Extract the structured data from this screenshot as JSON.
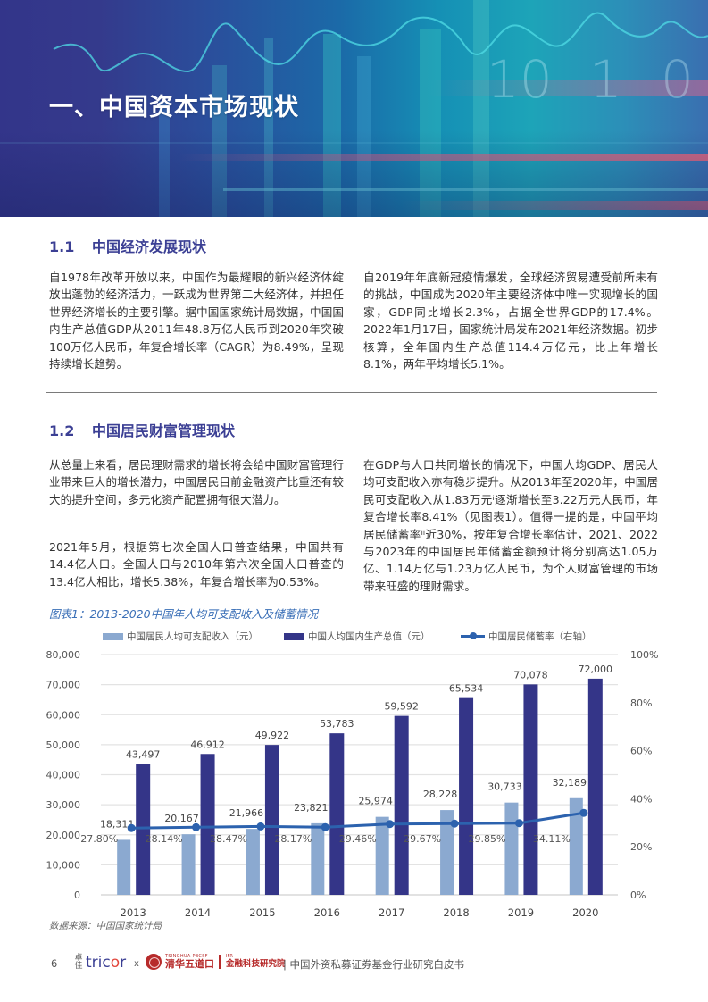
{
  "banner": {
    "title": "一、中国资本市场现状",
    "background_colors": [
      "#33358a",
      "#1b6aa8",
      "#1da4b8"
    ]
  },
  "section_1_1": {
    "number": "1.1",
    "title": "中国经济发展现状",
    "left_paragraph": "自1978年改革开放以来，中国作为最耀眼的新兴经济体绽放出蓬勃的经济活力，一跃成为世界第二大经济体，并担任世界经济增长的主要引擎。据中国国家统计局数据，中国国内生产总值GDP从2011年48.8万亿人民币到2020年突破100万亿人民币，年复合增长率（CAGR）为8.49%，呈现持续增长趋势。",
    "right_paragraph": "自2019年年底新冠疫情爆发，全球经济贸易遭受前所未有的挑战，中国成为2020年主要经济体中唯一实现增长的国家，GDP同比增长2.3%，占据全世界GDP的17.4%。2022年1月17日，国家统计局发布2021年经济数据。初步核算，全年国内生产总值114.4万亿元，比上年增长8.1%，两年平均增长5.1%。"
  },
  "section_1_2": {
    "number": "1.2",
    "title": "中国居民财富管理现状",
    "left_paragraph_1": "从总量上来看，居民理财需求的增长将会给中国财富管理行业带来巨大的增长潜力，中国居民目前金融资产比重还有较大的提升空间，多元化资产配置拥有很大潜力。",
    "left_paragraph_2": "2021年5月，根据第七次全国人口普查结果，中国共有14.4亿人口。全国人口与2010年第六次全国人口普查的13.4亿人相比，增长5.38%，年复合增长率为0.53%。",
    "right_paragraph": "在GDP与人口共同增长的情况下，中国人均GDP、居民人均可支配收入亦有稳步提升。从2013年至2020年，中国居民可支配收入从1.83万元ⁱ逐渐增长至3.22万元人民币，年复合增长率8.41%（见图表1）。值得一提的是，中国平均居民储蓄率ⁱⁱ近30%，按年复合增长率估计，2021、2022与2023年的中国居民年储蓄金额预计将分别高达1.05万亿、1.14万亿与1.23万亿人民币，为个人财富管理的市场带来旺盛的理财需求。"
  },
  "chart": {
    "caption": "图表1：2013-2020中国年人均可支配收入及储蓄情况",
    "source": "数据来源：中国国家统计局",
    "legend": [
      {
        "label": "中国居民人均可支配收入（元）",
        "color": "#8ba9d0",
        "kind": "bar"
      },
      {
        "label": "中国人均国内生产总值（元）",
        "color": "#343588",
        "kind": "bar"
      },
      {
        "label": "中国居民储蓄率（右轴）",
        "color": "#2c62ae",
        "kind": "line"
      }
    ],
    "left_ticks": [
      "80,000",
      "70,000",
      "60,000",
      "50,000",
      "40,000",
      "30,000",
      "20,000",
      "10,000",
      "0"
    ],
    "right_ticks": [
      "100%",
      "80%",
      "60%",
      "40%",
      "20%",
      "0%"
    ]
  },
  "chart_data": {
    "type": "bar",
    "title": "图表1：2013-2020中国年人均可支配收入及储蓄情况",
    "categories": [
      "2013",
      "2014",
      "2015",
      "2016",
      "2017",
      "2018",
      "2019",
      "2020"
    ],
    "series": [
      {
        "name": "中国居民人均可支配收入（元）",
        "type": "bar",
        "axis": "left",
        "color": "#8ba9d0",
        "values": [
          18311,
          20167,
          21966,
          23821,
          25974,
          28228,
          30733,
          32189
        ],
        "labels": [
          "18,311",
          "20,167",
          "21,966",
          "23,821",
          "25,974",
          "28,228",
          "30,733",
          "32,189"
        ]
      },
      {
        "name": "中国人均国内生产总值（元）",
        "type": "bar",
        "axis": "left",
        "color": "#343588",
        "values": [
          43497,
          46912,
          49922,
          53783,
          59592,
          65534,
          70078,
          72000
        ],
        "labels": [
          "43,497",
          "46,912",
          "49,922",
          "53,783",
          "59,592",
          "65,534",
          "70,078",
          "72,000"
        ]
      },
      {
        "name": "中国居民储蓄率（右轴）",
        "type": "line",
        "axis": "right",
        "color": "#2c62ae",
        "values": [
          27.8,
          28.14,
          28.47,
          28.17,
          29.46,
          29.67,
          29.85,
          34.11
        ],
        "labels": [
          "27.80%",
          "28.14%",
          "28.47%",
          "28.17%",
          "29.46%",
          "29.67%",
          "29.85%",
          "34.11%"
        ]
      }
    ],
    "xlabel": "",
    "ylabel": "",
    "ylim": [
      0,
      80000
    ],
    "ylim_right": [
      0,
      100
    ],
    "grid": true,
    "legend_position": "top"
  },
  "footer": {
    "page_number": "6",
    "tricor_mark": "卓佳",
    "tricor_brand": "tric",
    "tricor_brand_o": "o",
    "tricor_brand_end": "r",
    "separator_x": "x",
    "tsinghua_en": "TSINGHUA PBCSF",
    "tsinghua_cn": "清华五道口",
    "ifr_en": "IFR",
    "ifr_cn": "金融科技研究院",
    "document_title": "|  中国外资私募证券基金行业研究白皮书"
  }
}
